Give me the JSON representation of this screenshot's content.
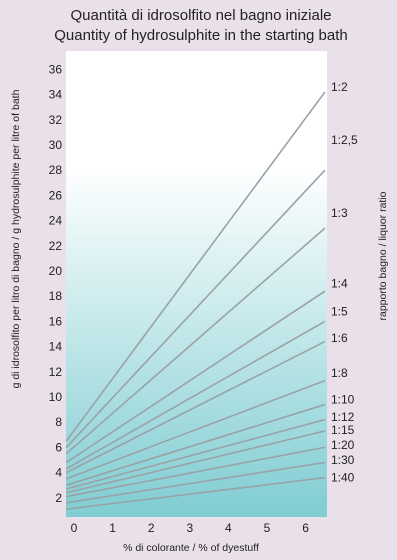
{
  "colors": {
    "page_background": "#eae0ea",
    "plot_gradient_top": "#ffffff",
    "plot_gradient_bottom": "#7fcdd2",
    "line_color": "#9aa2a6"
  },
  "chart_data": {
    "type": "line",
    "title": "Quantità di idrosolfito nel bagno iniziale",
    "subtitle": "Quantity of hydrosulphite in the starting bath",
    "xlabel": "% di colorante / % of dyestuff",
    "ylabel": "g di idrosolfito per litro di bagno / g hydrosulphite per litre of bath",
    "right_label": "rapporto bagno / liquor ratio",
    "xlim": [
      -0.2,
      6.5
    ],
    "ylim": [
      0,
      37
    ],
    "x_ticks": [
      0,
      1,
      2,
      3,
      4,
      5,
      6
    ],
    "x_tick_labels": [
      "0",
      "1",
      "2",
      "3",
      "4",
      "5",
      "6"
    ],
    "y_ticks": [
      2,
      4,
      6,
      8,
      10,
      12,
      14,
      16,
      18,
      20,
      22,
      24,
      26,
      28,
      30,
      32,
      34,
      36
    ],
    "y_tick_labels": [
      "2",
      "4",
      "6",
      "8",
      "10",
      "12",
      "14",
      "16",
      "18",
      "20",
      "22",
      "24",
      "26",
      "28",
      "30",
      "32",
      "34",
      "36"
    ],
    "grid": false,
    "legend": "none",
    "series": [
      {
        "name": "1:2",
        "x": [
          -0.2,
          6.5
        ],
        "y": [
          6.5,
          34.2
        ]
      },
      {
        "name": "1:2,5",
        "x": [
          -0.2,
          6.5
        ],
        "y": [
          6.0,
          28.0
        ]
      },
      {
        "name": "1:3",
        "x": [
          -0.2,
          6.5
        ],
        "y": [
          5.5,
          23.4
        ]
      },
      {
        "name": "1:4",
        "x": [
          -0.2,
          6.5
        ],
        "y": [
          4.8,
          18.4
        ]
      },
      {
        "name": "1:5",
        "x": [
          -0.2,
          6.5
        ],
        "y": [
          4.3,
          16.0
        ]
      },
      {
        "name": "1:6",
        "x": [
          -0.2,
          6.5
        ],
        "y": [
          4.0,
          14.4
        ]
      },
      {
        "name": "1:8",
        "x": [
          -0.2,
          6.5
        ],
        "y": [
          3.5,
          11.3
        ]
      },
      {
        "name": "1:10",
        "x": [
          -0.2,
          6.5
        ],
        "y": [
          3.0,
          9.4
        ]
      },
      {
        "name": "1:12",
        "x": [
          -0.2,
          6.5
        ],
        "y": [
          2.7,
          8.2
        ]
      },
      {
        "name": "1:15",
        "x": [
          -0.2,
          6.5
        ],
        "y": [
          2.4,
          7.3
        ]
      },
      {
        "name": "1:20",
        "x": [
          -0.2,
          6.5
        ],
        "y": [
          2.1,
          6.0
        ]
      },
      {
        "name": "1:30",
        "x": [
          -0.2,
          6.5
        ],
        "y": [
          1.6,
          4.8
        ]
      },
      {
        "name": "1:40",
        "x": [
          -0.2,
          6.5
        ],
        "y": [
          1.1,
          3.6
        ]
      }
    ],
    "ratio_labels": [
      {
        "text": "1:2",
        "y": 34.6
      },
      {
        "text": "1:2,5",
        "y": 30.4
      },
      {
        "text": "1:3",
        "y": 24.6
      },
      {
        "text": "1:4",
        "y": 19.0
      },
      {
        "text": "1:5",
        "y": 16.8
      },
      {
        "text": "1:6",
        "y": 14.7
      },
      {
        "text": "1:8",
        "y": 11.9
      },
      {
        "text": "1:10",
        "y": 9.8
      },
      {
        "text": "1:12",
        "y": 8.4
      },
      {
        "text": "1:15",
        "y": 7.4
      },
      {
        "text": "1:20",
        "y": 6.2
      },
      {
        "text": "1:30",
        "y": 5.0
      },
      {
        "text": "1:40",
        "y": 3.6
      }
    ]
  }
}
